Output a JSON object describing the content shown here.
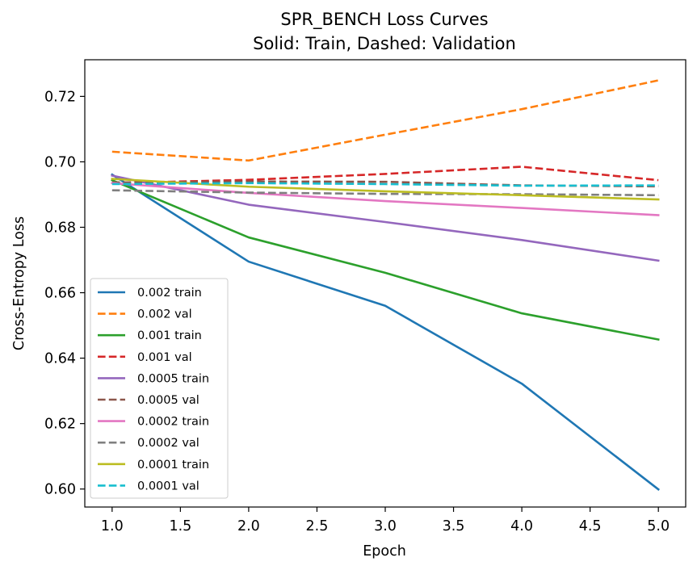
{
  "chart_data": {
    "type": "line",
    "title": "SPR_BENCH Loss Curves",
    "subtitle": "Solid: Train, Dashed: Validation",
    "xlabel": "Epoch",
    "ylabel": "Cross-Entropy Loss",
    "xlim": [
      0.8,
      5.2
    ],
    "ylim": [
      0.5945,
      0.7312
    ],
    "xticks": [
      1.0,
      1.5,
      2.0,
      2.5,
      3.0,
      3.5,
      4.0,
      4.5,
      5.0
    ],
    "xtick_labels": [
      "1.0",
      "1.5",
      "2.0",
      "2.5",
      "3.0",
      "3.5",
      "4.0",
      "4.5",
      "5.0"
    ],
    "yticks": [
      0.6,
      0.62,
      0.64,
      0.66,
      0.68,
      0.7,
      0.72
    ],
    "ytick_labels": [
      "0.60",
      "0.62",
      "0.64",
      "0.66",
      "0.68",
      "0.70",
      "0.72"
    ],
    "grid": false,
    "legend_position": "lower-left",
    "x": [
      1,
      2,
      3,
      4,
      5
    ],
    "series": [
      {
        "name": "0.002 train",
        "style": "solid",
        "color": "#1f77b4",
        "values": [
          0.6961,
          0.6695,
          0.656,
          0.6322,
          0.5999
        ]
      },
      {
        "name": "0.002 val",
        "style": "dashed",
        "color": "#ff7f0e",
        "values": [
          0.7031,
          0.7004,
          0.7083,
          0.7161,
          0.7249
        ]
      },
      {
        "name": "0.001 train",
        "style": "solid",
        "color": "#2ca02c",
        "values": [
          0.6944,
          0.6769,
          0.6661,
          0.6537,
          0.6457
        ]
      },
      {
        "name": "0.001 val",
        "style": "dashed",
        "color": "#d62728",
        "values": [
          0.6935,
          0.6945,
          0.6963,
          0.6985,
          0.6944
        ]
      },
      {
        "name": "0.0005 train",
        "style": "solid",
        "color": "#9467bd",
        "values": [
          0.6958,
          0.6869,
          0.6816,
          0.6761,
          0.6698
        ]
      },
      {
        "name": "0.0005 val",
        "style": "dashed",
        "color": "#8c564b",
        "values": [
          0.6937,
          0.694,
          0.6939,
          0.6928,
          0.6925
        ]
      },
      {
        "name": "0.0002 train",
        "style": "solid",
        "color": "#e377c2",
        "values": [
          0.6935,
          0.6905,
          0.688,
          0.6859,
          0.6837
        ]
      },
      {
        "name": "0.0002 val",
        "style": "dashed",
        "color": "#7f7f7f",
        "values": [
          0.6913,
          0.6906,
          0.6902,
          0.6901,
          0.6898
        ]
      },
      {
        "name": "0.0001 train",
        "style": "solid",
        "color": "#bcbd22",
        "values": [
          0.6948,
          0.6924,
          0.691,
          0.6898,
          0.6885
        ]
      },
      {
        "name": "0.0001 val",
        "style": "dashed",
        "color": "#17becf",
        "values": [
          0.6932,
          0.6935,
          0.6932,
          0.6927,
          0.6928
        ]
      }
    ]
  }
}
